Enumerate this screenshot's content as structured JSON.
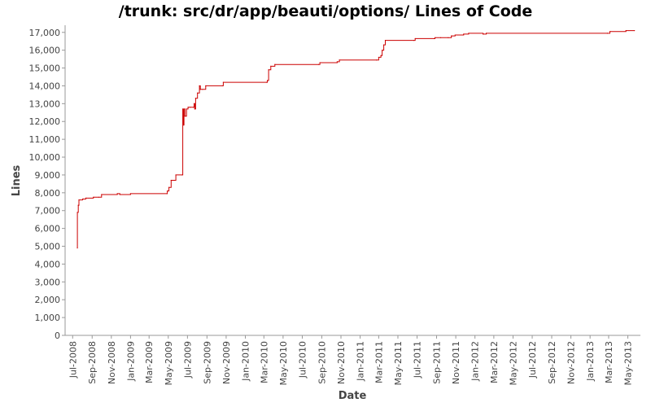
{
  "chart_data": {
    "type": "line",
    "title": "/trunk: src/dr/app/beauti/options/ Lines of Code",
    "xlabel": "Date",
    "ylabel": "Lines",
    "ylim": [
      0,
      17400
    ],
    "xlim": [
      "2008-06-07",
      "2013-06-10"
    ],
    "line_color": "#cc0000",
    "grid": false,
    "y_ticks": [
      0,
      1000,
      2000,
      3000,
      4000,
      5000,
      6000,
      7000,
      8000,
      9000,
      10000,
      11000,
      12000,
      13000,
      14000,
      15000,
      16000,
      17000
    ],
    "y_tick_labels": [
      "0",
      "1,000",
      "2,000",
      "3,000",
      "4,000",
      "5,000",
      "6,000",
      "7,000",
      "8,000",
      "9,000",
      "10,000",
      "11,000",
      "12,000",
      "13,000",
      "14,000",
      "15,000",
      "16,000",
      "17,000"
    ],
    "x_ticks": [
      "2008-07-01",
      "2008-09-01",
      "2008-11-01",
      "2009-01-01",
      "2009-03-01",
      "2009-05-01",
      "2009-07-01",
      "2009-09-01",
      "2009-11-01",
      "2010-01-01",
      "2010-03-01",
      "2010-05-01",
      "2010-07-01",
      "2010-09-01",
      "2010-11-01",
      "2011-01-01",
      "2011-03-01",
      "2011-05-01",
      "2011-07-01",
      "2011-09-01",
      "2011-11-01",
      "2012-01-01",
      "2012-03-01",
      "2012-05-01",
      "2012-07-01",
      "2012-09-01",
      "2012-11-01",
      "2013-01-01",
      "2013-03-01",
      "2013-05-01"
    ],
    "x_tick_labels": [
      "Jul-2008",
      "Sep-2008",
      "Nov-2008",
      "Jan-2009",
      "Mar-2009",
      "May-2009",
      "Jul-2009",
      "Sep-2009",
      "Nov-2009",
      "Jan-2010",
      "Mar-2010",
      "May-2010",
      "Jul-2010",
      "Sep-2010",
      "Nov-2010",
      "Jan-2011",
      "Mar-2011",
      "May-2011",
      "Jul-2011",
      "Sep-2011",
      "Nov-2011",
      "Jan-2012",
      "Mar-2012",
      "May-2012",
      "Jul-2012",
      "Sep-2012",
      "Nov-2012",
      "Jan-2013",
      "Mar-2013",
      "May-2013"
    ],
    "series": [
      {
        "values": [
          [
            "2008-07-16",
            4900
          ],
          [
            "2008-07-16",
            6900
          ],
          [
            "2008-07-19",
            7300
          ],
          [
            "2008-07-21",
            7600
          ],
          [
            "2008-08-02",
            7650
          ],
          [
            "2008-08-12",
            7700
          ],
          [
            "2008-09-05",
            7750
          ],
          [
            "2008-09-22",
            7750
          ],
          [
            "2008-10-01",
            7900
          ],
          [
            "2008-11-20",
            7950
          ],
          [
            "2008-11-28",
            7900
          ],
          [
            "2009-01-01",
            7950
          ],
          [
            "2009-04-27",
            7950
          ],
          [
            "2009-04-28",
            8100
          ],
          [
            "2009-05-03",
            8300
          ],
          [
            "2009-05-10",
            8700
          ],
          [
            "2009-05-25",
            9000
          ],
          [
            "2009-06-14",
            9000
          ],
          [
            "2009-06-16",
            12700
          ],
          [
            "2009-06-18",
            11800
          ],
          [
            "2009-06-20",
            12700
          ],
          [
            "2009-06-23",
            12300
          ],
          [
            "2009-06-28",
            12700
          ],
          [
            "2009-07-03",
            12800
          ],
          [
            "2009-07-10",
            12800
          ],
          [
            "2009-07-20",
            12800
          ],
          [
            "2009-07-22",
            13000
          ],
          [
            "2009-07-24",
            12700
          ],
          [
            "2009-07-27",
            13300
          ],
          [
            "2009-08-02",
            13600
          ],
          [
            "2009-08-08",
            14000
          ],
          [
            "2009-08-11",
            13800
          ],
          [
            "2009-08-18",
            13800
          ],
          [
            "2009-08-28",
            14000
          ],
          [
            "2009-10-20",
            14000
          ],
          [
            "2009-10-23",
            14200
          ],
          [
            "2010-03-10",
            14200
          ],
          [
            "2010-03-12",
            14300
          ],
          [
            "2010-03-16",
            14900
          ],
          [
            "2010-03-23",
            15100
          ],
          [
            "2010-04-05",
            15200
          ],
          [
            "2010-08-22",
            15200
          ],
          [
            "2010-08-26",
            15300
          ],
          [
            "2010-10-20",
            15350
          ],
          [
            "2010-10-27",
            15450
          ],
          [
            "2011-02-22",
            15450
          ],
          [
            "2011-03-01",
            15600
          ],
          [
            "2011-03-08",
            15700
          ],
          [
            "2011-03-12",
            16000
          ],
          [
            "2011-03-17",
            16300
          ],
          [
            "2011-03-22",
            16550
          ],
          [
            "2011-06-21",
            16550
          ],
          [
            "2011-06-25",
            16650
          ],
          [
            "2011-08-24",
            16650
          ],
          [
            "2011-08-27",
            16700
          ],
          [
            "2011-09-14",
            16700
          ],
          [
            "2011-10-08",
            16700
          ],
          [
            "2011-10-18",
            16800
          ],
          [
            "2011-10-30",
            16850
          ],
          [
            "2011-11-26",
            16900
          ],
          [
            "2011-12-12",
            16950
          ],
          [
            "2012-01-27",
            16900
          ],
          [
            "2012-02-06",
            16950
          ],
          [
            "2013-02-25",
            16950
          ],
          [
            "2013-03-05",
            17050
          ],
          [
            "2013-04-25",
            17100
          ],
          [
            "2013-05-22",
            17100
          ]
        ]
      }
    ]
  }
}
